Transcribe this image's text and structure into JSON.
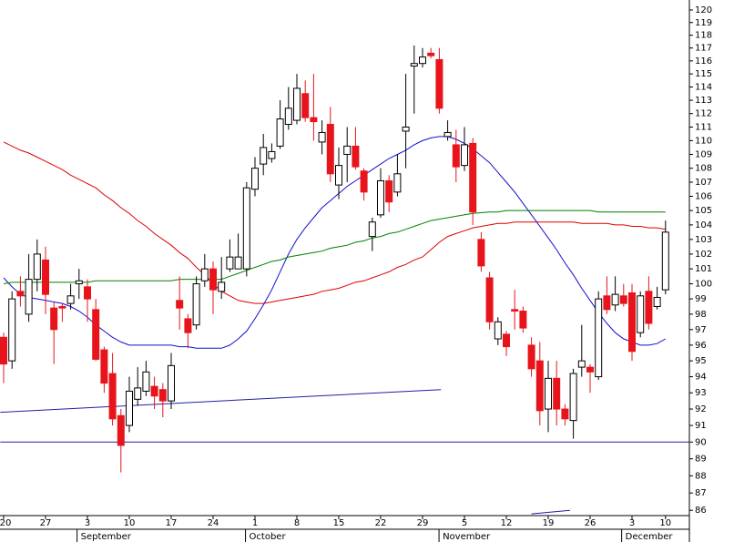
{
  "chart_data": {
    "type": "candlestick",
    "categories": [
      "20",
      null,
      null,
      null,
      null,
      "27",
      null,
      null,
      null,
      null,
      "3",
      null,
      null,
      null,
      null,
      "10",
      null,
      null,
      null,
      null,
      "17",
      null,
      null,
      null,
      null,
      "24",
      null,
      null,
      null,
      null,
      "1",
      null,
      null,
      null,
      null,
      "8",
      null,
      null,
      null,
      null,
      "15",
      null,
      null,
      null,
      null,
      "22",
      null,
      null,
      null,
      null,
      "29",
      null,
      null,
      null,
      null,
      "5",
      null,
      null,
      null,
      null,
      "12",
      null,
      null,
      null,
      null,
      "19",
      null,
      null,
      null,
      null,
      "26",
      null,
      null,
      null,
      null,
      "3",
      null,
      null,
      null,
      "10"
    ],
    "months": [
      "September",
      "October",
      "November",
      "December"
    ],
    "open": [
      96.5,
      95,
      99.5,
      98,
      100.3,
      101.6,
      98.4,
      98.5,
      98.7,
      100.0,
      99.8,
      98.3,
      95.7,
      94.2,
      91.6,
      91,
      92.6,
      93.1,
      93.4,
      93.2,
      92.5,
      98.9,
      97.7,
      97.3,
      100.2,
      101,
      99.5,
      101,
      101,
      101,
      106.5,
      108.3,
      108.7,
      109.6,
      111.2,
      111.5,
      113.5,
      111.7,
      109.9,
      111.2,
      106.8,
      109,
      109.6,
      107.8,
      103.2,
      104.7,
      107.1,
      106.3,
      110.7,
      115.6,
      115.8,
      116.6,
      116.1,
      110.3,
      109.7,
      108.2,
      109.8,
      103,
      100.4,
      96.4,
      96.7,
      98.3,
      98.2,
      96,
      95,
      92,
      93.9,
      92,
      91.3,
      94.6,
      94.6,
      94,
      99.2,
      98.6,
      99.2,
      99.4,
      96.8,
      99.5,
      98.5,
      99.6
    ],
    "high": [
      96.8,
      99.5,
      100.5,
      102,
      103,
      102.5,
      98.8,
      98.7,
      100,
      101,
      100.3,
      99,
      95.9,
      95.5,
      92,
      94,
      94.6,
      95,
      94,
      93.6,
      95.5,
      100.5,
      98,
      100.5,
      102,
      101.5,
      101.8,
      103,
      103.4,
      107,
      108.8,
      110.5,
      109.8,
      113,
      114,
      115,
      114.5,
      115,
      111.5,
      112.5,
      109.5,
      111,
      111,
      108,
      104.5,
      108,
      107.5,
      109,
      115,
      117.2,
      117,
      117,
      117,
      111.5,
      110.8,
      111,
      110.2,
      103.5,
      100.8,
      97.8,
      96.9,
      99.6,
      98.5,
      96.5,
      96.2,
      95,
      95,
      92.3,
      94.5,
      97.3,
      94.8,
      99.5,
      100.5,
      100.5,
      100,
      100,
      99.5,
      100.5,
      99.8,
      104.3
    ],
    "low": [
      93.6,
      94.5,
      98.5,
      97.5,
      99.5,
      98,
      94.8,
      97.5,
      98.3,
      99,
      97.5,
      95,
      93,
      91,
      88.2,
      90.6,
      92.2,
      92.8,
      92,
      91.5,
      92,
      97,
      95.8,
      97,
      99.8,
      98,
      99,
      100.8,
      101,
      100.5,
      106,
      107.5,
      108.4,
      109.4,
      110.8,
      111.2,
      111.4,
      110,
      109,
      107,
      105.8,
      107,
      107.9,
      105.7,
      102.2,
      104.5,
      104.9,
      106,
      108,
      112,
      115.5,
      116.2,
      112,
      110,
      107,
      107.8,
      104,
      100.8,
      97,
      96,
      95.3,
      97,
      96.8,
      94,
      91,
      90.6,
      91,
      91,
      90.2,
      94,
      93,
      93.8,
      98,
      98.2,
      98.5,
      95,
      96.5,
      97,
      98.3,
      99.3
    ],
    "close": [
      94.8,
      99,
      99.2,
      100.3,
      102,
      99.3,
      97,
      98.4,
      99.2,
      100.2,
      99,
      95.1,
      93.6,
      91.4,
      89.8,
      93.1,
      93.3,
      94.3,
      92.8,
      92.5,
      94.7,
      98.4,
      96.8,
      100,
      101,
      99.6,
      100.1,
      101.8,
      101.8,
      106.6,
      108,
      109.5,
      109.2,
      111.6,
      112.4,
      113.9,
      111.7,
      111.4,
      110.6,
      107.6,
      108.2,
      109.6,
      108.1,
      106.3,
      104.2,
      107.1,
      105.6,
      107.6,
      111,
      115.8,
      116.3,
      116.4,
      112.4,
      110.6,
      108.1,
      109.7,
      104.9,
      101.2,
      97.5,
      97.5,
      95.9,
      98.2,
      97.1,
      94.5,
      91.9,
      93.9,
      92,
      91.4,
      94.2,
      95,
      94.3,
      99,
      98.3,
      99.3,
      98.7,
      95.6,
      99.2,
      97.4,
      99.1,
      103.5
    ],
    "up_color": "#ffffff",
    "down_color": "#e8141c",
    "series": [
      {
        "color": "#e00000",
        "values": [
          109.9,
          109.6,
          109.3,
          109.1,
          108.8,
          108.5,
          108.2,
          107.9,
          107.5,
          107.2,
          106.9,
          106.6,
          106.1,
          105.7,
          105.2,
          104.8,
          104.3,
          103.9,
          103.4,
          103.0,
          102.6,
          102.1,
          101.7,
          101.1,
          100.6,
          100.0,
          99.5,
          99.2,
          98.9,
          98.8,
          98.7,
          98.7,
          98.8,
          98.9,
          99.0,
          99.1,
          99.2,
          99.3,
          99.5,
          99.6,
          99.7,
          99.9,
          100.1,
          100.2,
          100.4,
          100.6,
          100.8,
          101.1,
          101.3,
          101.6,
          101.8,
          102.3,
          102.8,
          103.2,
          103.4,
          103.6,
          103.8,
          103.9,
          104.0,
          104.1,
          104.1,
          104.2,
          104.2,
          104.2,
          104.2,
          104.2,
          104.2,
          104.2,
          104.2,
          104.1,
          104.1,
          104.1,
          104.1,
          104.0,
          104.0,
          103.9,
          103.9,
          103.8,
          103.8,
          103.7
        ]
      },
      {
        "color": "#1010d0",
        "values": [
          100.4,
          99.8,
          99.3,
          99.1,
          99.0,
          98.9,
          98.8,
          98.7,
          98.5,
          98.2,
          97.8,
          97.3,
          96.9,
          96.5,
          96.2,
          96.0,
          96.0,
          96.0,
          96.0,
          96.0,
          96.0,
          95.9,
          95.9,
          95.8,
          95.8,
          95.8,
          95.8,
          96.0,
          96.4,
          96.9,
          97.7,
          98.6,
          99.6,
          100.8,
          102.0,
          103.0,
          103.8,
          104.5,
          105.2,
          105.7,
          106.2,
          106.7,
          107.1,
          107.5,
          107.9,
          108.3,
          108.7,
          109.0,
          109.3,
          109.7,
          110.0,
          110.2,
          110.3,
          110.3,
          110.1,
          109.8,
          109.4,
          108.9,
          108.4,
          107.7,
          107.0,
          106.3,
          105.5,
          104.7,
          103.9,
          103.1,
          102.3,
          101.4,
          100.6,
          99.7,
          98.9,
          98.1,
          97.4,
          96.8,
          96.4,
          96.2,
          96.0,
          96.0,
          96.1,
          96.4
        ]
      },
      {
        "color": "#008000",
        "values": [
          100.0,
          100.1,
          100.1,
          100.1,
          100.1,
          100.1,
          100.1,
          100.1,
          100.1,
          100.1,
          100.1,
          100.2,
          100.2,
          100.2,
          100.2,
          100.2,
          100.2,
          100.2,
          100.2,
          100.2,
          100.2,
          100.3,
          100.3,
          100.3,
          100.3,
          100.3,
          100.3,
          100.5,
          100.7,
          100.9,
          101.1,
          101.3,
          101.5,
          101.6,
          101.8,
          101.9,
          102.0,
          102.1,
          102.2,
          102.4,
          102.5,
          102.6,
          102.8,
          102.9,
          103.1,
          103.2,
          103.4,
          103.5,
          103.7,
          103.9,
          104.1,
          104.3,
          104.4,
          104.5,
          104.6,
          104.7,
          104.8,
          104.85,
          104.9,
          104.9,
          105,
          105,
          105,
          105,
          105,
          105,
          105,
          105,
          105,
          105,
          105,
          104.9,
          104.9,
          104.9,
          104.9,
          104.9,
          104.9,
          104.9,
          104.9,
          104.9
        ]
      }
    ],
    "lines": [
      {
        "color": "#2020a0",
        "points": [
          [
            -0.4,
            91.8
          ],
          [
            52.2,
            93.2
          ]
        ]
      },
      {
        "color": "#2020a0",
        "points": [
          [
            -0.4,
            90
          ],
          [
            81.9,
            90
          ]
        ]
      },
      {
        "color": "#2020a0",
        "points": [
          [
            63,
            85.8
          ],
          [
            67.6,
            86
          ]
        ]
      }
    ],
    "ylim": [
      85.7,
      120.8
    ],
    "yticks": [
      86,
      87,
      88,
      89,
      90,
      91,
      92,
      93,
      94,
      95,
      96,
      97,
      98,
      99,
      100,
      101,
      102,
      103,
      104,
      105,
      106,
      107,
      108,
      109,
      110,
      111,
      112,
      113,
      114,
      115,
      116,
      117,
      118,
      119,
      120
    ],
    "log_scale": true
  }
}
